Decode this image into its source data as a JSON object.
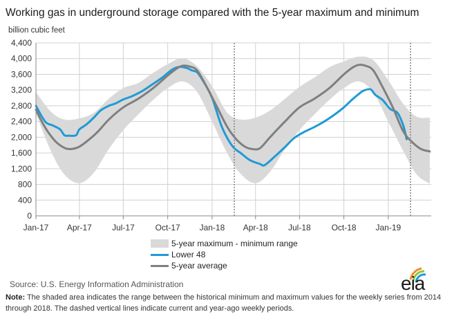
{
  "header": {
    "title": "Working gas in underground  storage compared with the 5-year maximum and minimum",
    "unit": "billion cubic feet"
  },
  "legend": {
    "range_label": "5-year maximum - minimum range",
    "lower48_label": "Lower 48",
    "avg_label": "5-year average"
  },
  "footer": {
    "source": "Source:  U.S. Energy Information Administration",
    "note_label": "Note:",
    "note_text": " The shaded area indicates the range between the historical minimum and maximum values for the weekly series from 2014 through 2018. The dashed vertical lines indicate current and year-ago weekly periods.",
    "logo_text": "eia"
  },
  "colors": {
    "range": "#d9d9d9",
    "lower48": "#1f9ad6",
    "average": "#7f7f7f",
    "logo_orange": "#f28c28",
    "logo_green": "#8cc63f",
    "logo_blue": "#1f9ad6"
  },
  "chart_data": {
    "type": "line",
    "title": "Working gas in underground  storage compared with the 5-year maximum and minimum",
    "ylabel": "billion cubic feet",
    "ylim": [
      0,
      4400
    ],
    "yticks": [
      0,
      400,
      800,
      1200,
      1600,
      2000,
      2400,
      2800,
      3200,
      3600,
      4000,
      4400
    ],
    "ytick_labels": [
      "0",
      "400",
      "800",
      "1,200",
      "1,600",
      "2,000",
      "2,400",
      "2,800",
      "3,200",
      "3,600",
      "4,000",
      "4,400"
    ],
    "xlim": [
      "2017-01-01",
      "2019-03-31"
    ],
    "xticks": [
      "2017-01-01",
      "2017-04-01",
      "2017-07-01",
      "2017-10-01",
      "2018-01-01",
      "2018-04-01",
      "2018-07-01",
      "2018-10-01",
      "2019-01-01"
    ],
    "xtick_labels": [
      "Jan-17",
      "Apr-17",
      "Jul-17",
      "Oct-17",
      "Jan-18",
      "Apr-18",
      "Jul-18",
      "Oct-18",
      "Jan-19"
    ],
    "grid": true,
    "legend_position": "bottom",
    "vlines": [
      "2018-02-16",
      "2019-02-16"
    ],
    "series": [
      {
        "name": "5-year maximum - minimum range",
        "kind": "band",
        "x": [
          "2017-01-01",
          "2017-02-01",
          "2017-03-01",
          "2017-04-01",
          "2017-05-01",
          "2017-06-01",
          "2017-07-01",
          "2017-08-01",
          "2017-09-01",
          "2017-10-01",
          "2017-11-01",
          "2017-12-01",
          "2018-01-01",
          "2018-02-01",
          "2018-03-01",
          "2018-04-01",
          "2018-05-01",
          "2018-06-01",
          "2018-07-01",
          "2018-08-01",
          "2018-09-01",
          "2018-10-01",
          "2018-11-01",
          "2018-12-01",
          "2019-01-01",
          "2019-02-01",
          "2019-03-01",
          "2019-03-28"
        ],
        "max": [
          3150,
          2650,
          2450,
          2480,
          2620,
          2980,
          3250,
          3380,
          3640,
          3860,
          4010,
          3800,
          3300,
          2630,
          2450,
          2500,
          2680,
          2980,
          3280,
          3520,
          3780,
          3930,
          4050,
          3960,
          3450,
          2850,
          2520,
          2500
        ],
        "min": [
          2600,
          1650,
          1050,
          830,
          1100,
          1700,
          2180,
          2580,
          2950,
          3250,
          3420,
          3150,
          2400,
          1600,
          1070,
          830,
          1120,
          1700,
          2180,
          2580,
          2950,
          3250,
          3420,
          3140,
          2400,
          1650,
          1050,
          820
        ]
      },
      {
        "name": "Lower 48",
        "x": [
          "2017-01-01",
          "2017-01-20",
          "2017-02-05",
          "2017-02-20",
          "2017-03-01",
          "2017-03-10",
          "2017-03-25",
          "2017-04-01",
          "2017-04-15",
          "2017-05-01",
          "2017-05-15",
          "2017-06-01",
          "2017-06-15",
          "2017-07-01",
          "2017-07-20",
          "2017-08-10",
          "2017-09-01",
          "2017-09-20",
          "2017-10-10",
          "2017-10-25",
          "2017-11-10",
          "2017-11-20",
          "2017-12-01",
          "2017-12-15",
          "2018-01-01",
          "2018-01-20",
          "2018-02-05",
          "2018-02-16",
          "2018-03-01",
          "2018-03-20",
          "2018-04-10",
          "2018-04-20",
          "2018-05-10",
          "2018-06-01",
          "2018-06-20",
          "2018-07-10",
          "2018-08-01",
          "2018-08-20",
          "2018-09-10",
          "2018-10-01",
          "2018-10-20",
          "2018-11-01",
          "2018-11-10",
          "2018-11-25",
          "2018-12-05",
          "2018-12-20",
          "2019-01-05",
          "2019-01-20",
          "2019-02-01",
          "2019-02-08"
        ],
        "y": [
          2800,
          2400,
          2300,
          2200,
          2050,
          2040,
          2050,
          2200,
          2320,
          2500,
          2680,
          2800,
          2860,
          2960,
          3050,
          3180,
          3360,
          3520,
          3720,
          3790,
          3760,
          3700,
          3650,
          3400,
          3000,
          2300,
          1900,
          1720,
          1600,
          1420,
          1320,
          1290,
          1500,
          1750,
          1980,
          2130,
          2260,
          2390,
          2560,
          2760,
          2980,
          3100,
          3180,
          3220,
          3080,
          2950,
          2720,
          2620,
          2300,
          1950
        ]
      },
      {
        "name": "5-year average",
        "x": [
          "2017-01-01",
          "2017-01-20",
          "2017-02-10",
          "2017-03-01",
          "2017-03-15",
          "2017-04-01",
          "2017-04-20",
          "2017-05-10",
          "2017-06-01",
          "2017-07-01",
          "2017-08-01",
          "2017-09-01",
          "2017-10-01",
          "2017-10-20",
          "2017-11-01",
          "2017-11-15",
          "2017-12-01",
          "2017-12-20",
          "2018-01-10",
          "2018-02-01",
          "2018-02-20",
          "2018-03-10",
          "2018-03-25",
          "2018-04-10",
          "2018-05-01",
          "2018-06-01",
          "2018-07-01",
          "2018-08-01",
          "2018-09-01",
          "2018-10-01",
          "2018-10-20",
          "2018-11-01",
          "2018-11-15",
          "2018-12-01",
          "2018-12-20",
          "2019-01-10",
          "2019-02-01",
          "2019-02-20",
          "2019-03-10",
          "2019-03-28"
        ],
        "y": [
          2700,
          2250,
          1900,
          1730,
          1700,
          1760,
          1930,
          2150,
          2450,
          2760,
          2980,
          3250,
          3570,
          3750,
          3820,
          3800,
          3700,
          3300,
          2800,
          2270,
          1950,
          1760,
          1700,
          1720,
          2000,
          2400,
          2760,
          2980,
          3250,
          3600,
          3780,
          3840,
          3820,
          3700,
          3280,
          2770,
          2150,
          1870,
          1700,
          1640
        ]
      }
    ]
  }
}
